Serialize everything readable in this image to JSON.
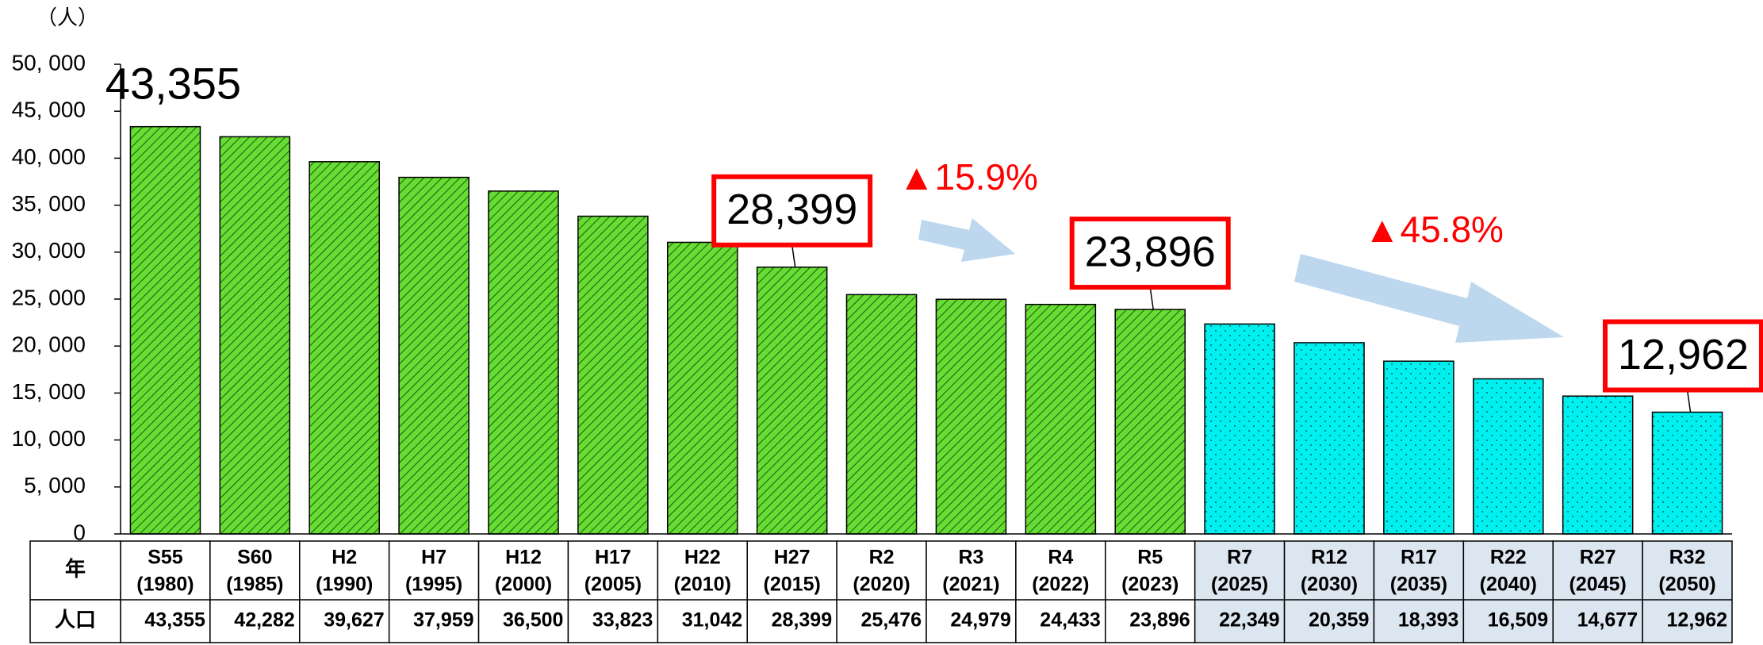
{
  "chart_data": {
    "type": "bar",
    "y_unit_label": "（人）",
    "categories": [
      "S55",
      "S60",
      "H2",
      "H7",
      "H12",
      "H17",
      "H22",
      "H27",
      "R2",
      "R3",
      "R4",
      "R5",
      "R7",
      "R12",
      "R17",
      "R22",
      "R27",
      "R32"
    ],
    "category_years": [
      "(1980)",
      "(1985)",
      "(1990)",
      "(1995)",
      "(2000)",
      "(2005)",
      "(2010)",
      "(2015)",
      "(2020)",
      "(2021)",
      "(2022)",
      "(2023)",
      "(2025)",
      "(2030)",
      "(2035)",
      "(2040)",
      "(2045)",
      "(2050)"
    ],
    "values": [
      43355,
      42282,
      39627,
      37959,
      36500,
      33823,
      31042,
      28399,
      25476,
      24979,
      24433,
      23896,
      22349,
      20359,
      18393,
      16509,
      14677,
      12962
    ],
    "value_labels": [
      "43,355",
      "42,282",
      "39,627",
      "37,959",
      "36,500",
      "33,823",
      "31,042",
      "28,399",
      "25,476",
      "24,979",
      "24,433",
      "23,896",
      "22,349",
      "20,359",
      "18,393",
      "16,509",
      "14,677",
      "12,962"
    ],
    "colors": [
      "#66dd33",
      "#66dd33",
      "#66dd33",
      "#66dd33",
      "#66dd33",
      "#66dd33",
      "#66dd33",
      "#66dd33",
      "#66dd33",
      "#66dd33",
      "#66dd33",
      "#66dd33",
      "#00f0f0",
      "#00f0f0",
      "#00f0f0",
      "#00f0f0",
      "#00f0f0",
      "#00f0f0"
    ],
    "patterns": [
      "hatch",
      "hatch",
      "hatch",
      "hatch",
      "hatch",
      "hatch",
      "hatch",
      "hatch",
      "hatch",
      "hatch",
      "hatch",
      "hatch",
      "dots",
      "dots",
      "dots",
      "dots",
      "dots",
      "dots"
    ],
    "table_cell_colors": [
      "#ffffff",
      "#ffffff",
      "#ffffff",
      "#ffffff",
      "#ffffff",
      "#ffffff",
      "#ffffff",
      "#ffffff",
      "#ffffff",
      "#ffffff",
      "#ffffff",
      "#ffffff",
      "#dce6f1",
      "#dce6f1",
      "#dce6f1",
      "#dce6f1",
      "#dce6f1",
      "#dce6f1"
    ],
    "table_row_headers": [
      "年",
      "人口"
    ],
    "ylim": [
      0,
      50000
    ],
    "yticks": [
      0,
      {
        "value": 5000,
        "label": "5, 000"
      },
      {
        "value": 10000,
        "label": "10, 000"
      },
      {
        "value": 15000,
        "label": "15, 000"
      },
      {
        "value": 20000,
        "label": "20, 000"
      },
      {
        "value": 25000,
        "label": "25, 000"
      },
      {
        "value": 30000,
        "label": "30, 000"
      },
      {
        "value": 35000,
        "label": "35, 000"
      },
      {
        "value": 40000,
        "label": "40, 000"
      },
      {
        "value": 45000,
        "label": "45, 000"
      },
      {
        "value": 50000,
        "label": "50, 000"
      }
    ],
    "callouts": [
      {
        "label": "43,355",
        "category": "S55",
        "boxed": false
      },
      {
        "label": "28,399",
        "category": "H27",
        "boxed": true
      },
      {
        "label": "23,896",
        "category": "R5",
        "boxed": true
      },
      {
        "label": "12,962",
        "category": "R32",
        "boxed": true
      }
    ],
    "change_labels": [
      "▲15.9%",
      "▲45.8%"
    ]
  }
}
